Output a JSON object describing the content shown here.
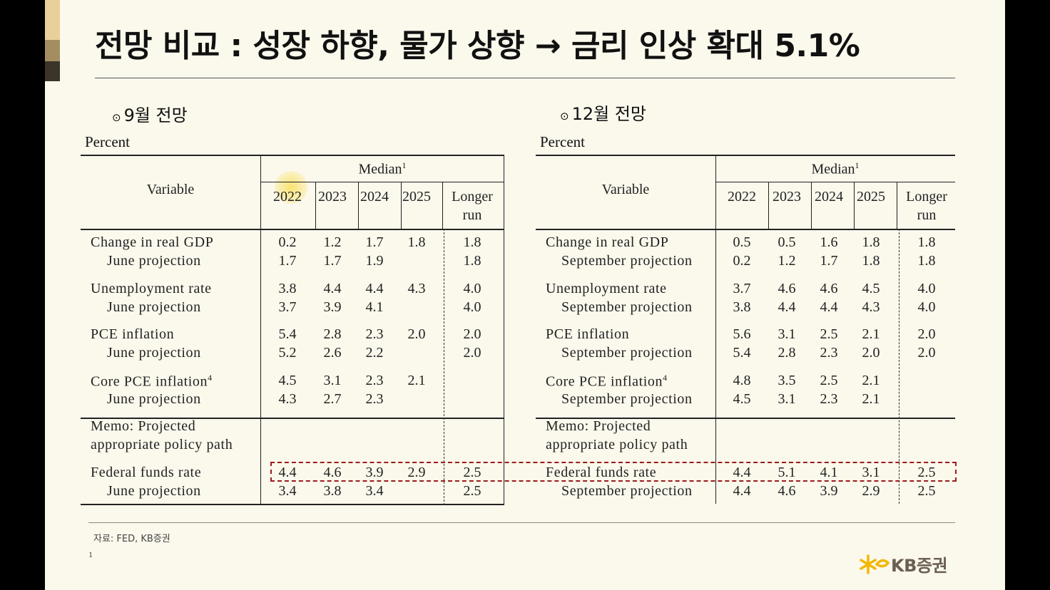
{
  "title": "전망 비교 : 성장 하향, 물가 상향 → 금리 인상 확대 5.1%",
  "left": {
    "heading": "9월 전망",
    "percent": "Percent",
    "variable_header": "Variable",
    "median_header": "Median",
    "median_sup": "1",
    "years": [
      "2022",
      "2023",
      "2024",
      "2025"
    ],
    "longer_run": [
      "Longer",
      "run"
    ],
    "rows": [
      {
        "label": "Change in real GDP",
        "sup": "",
        "values": [
          "0.2",
          "1.2",
          "1.7",
          "1.8",
          "1.8"
        ]
      },
      {
        "label": "June projection",
        "sup": "",
        "values": [
          "1.7",
          "1.7",
          "1.9",
          "",
          "1.8"
        ]
      },
      {
        "label": "Unemployment rate",
        "sup": "",
        "values": [
          "3.8",
          "4.4",
          "4.4",
          "4.3",
          "4.0"
        ]
      },
      {
        "label": "June projection",
        "sup": "",
        "values": [
          "3.7",
          "3.9",
          "4.1",
          "",
          "4.0"
        ]
      },
      {
        "label": "PCE inflation",
        "sup": "",
        "values": [
          "5.4",
          "2.8",
          "2.3",
          "2.0",
          "2.0"
        ]
      },
      {
        "label": "June projection",
        "sup": "",
        "values": [
          "5.2",
          "2.6",
          "2.2",
          "",
          "2.0"
        ]
      },
      {
        "label": "Core PCE inflation",
        "sup": "4",
        "values": [
          "4.5",
          "3.1",
          "2.3",
          "2.1",
          ""
        ]
      },
      {
        "label": "June projection",
        "sup": "",
        "values": [
          "4.3",
          "2.7",
          "2.3",
          "",
          ""
        ]
      }
    ],
    "memo": [
      "Memo: Projected",
      "appropriate policy path"
    ],
    "funds_rows": [
      {
        "label": "Federal funds rate",
        "values": [
          "4.4",
          "4.6",
          "3.9",
          "2.9",
          "2.5"
        ]
      },
      {
        "label": "June projection",
        "values": [
          "3.4",
          "3.8",
          "3.4",
          "",
          "2.5"
        ]
      }
    ]
  },
  "right": {
    "heading": "12월 전망",
    "percent": "Percent",
    "variable_header": "Variable",
    "median_header": "Median",
    "median_sup": "1",
    "years": [
      "2022",
      "2023",
      "2024",
      "2025"
    ],
    "longer_run": [
      "Longer",
      "run"
    ],
    "rows": [
      {
        "label": "Change in real GDP",
        "sup": "",
        "values": [
          "0.5",
          "0.5",
          "1.6",
          "1.8",
          "1.8"
        ]
      },
      {
        "label": "September projection",
        "sup": "",
        "values": [
          "0.2",
          "1.2",
          "1.7",
          "1.8",
          "1.8"
        ]
      },
      {
        "label": "Unemployment rate",
        "sup": "",
        "values": [
          "3.7",
          "4.6",
          "4.6",
          "4.5",
          "4.0"
        ]
      },
      {
        "label": "September projection",
        "sup": "",
        "values": [
          "3.8",
          "4.4",
          "4.4",
          "4.3",
          "4.0"
        ]
      },
      {
        "label": "PCE inflation",
        "sup": "",
        "values": [
          "5.6",
          "3.1",
          "2.5",
          "2.1",
          "2.0"
        ]
      },
      {
        "label": "September projection",
        "sup": "",
        "values": [
          "5.4",
          "2.8",
          "2.3",
          "2.0",
          "2.0"
        ]
      },
      {
        "label": "Core PCE inflation",
        "sup": "4",
        "values": [
          "4.8",
          "3.5",
          "2.5",
          "2.1",
          ""
        ]
      },
      {
        "label": "September projection",
        "sup": "",
        "values": [
          "4.5",
          "3.1",
          "2.3",
          "2.1",
          ""
        ]
      }
    ],
    "memo": [
      "Memo: Projected",
      "appropriate policy path"
    ],
    "funds_rows": [
      {
        "label": "Federal funds rate",
        "values": [
          "4.4",
          "5.1",
          "4.1",
          "3.1",
          "2.5"
        ]
      },
      {
        "label": "September projection",
        "values": [
          "4.4",
          "4.6",
          "3.9",
          "2.9",
          "2.5"
        ]
      }
    ]
  },
  "source": "자료: FED, KB증권",
  "page_number": "1",
  "logo_text": "KB증권",
  "colors": {
    "background": "#fbf8ec",
    "highlight_box": "#9b1c1c",
    "logo_star": "#f2b705",
    "highlight_circle": "#f5d53f"
  }
}
